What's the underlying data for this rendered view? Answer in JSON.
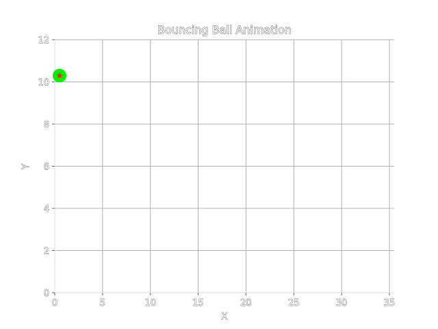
{
  "chart_data": {
    "type": "scatter",
    "title": "Bouncing Ball Animation",
    "xlabel": "X",
    "ylabel": "Y",
    "xlim": [
      0,
      35.5
    ],
    "ylim": [
      0,
      12
    ],
    "xticks": [
      "0",
      "5",
      "10",
      "15",
      "20",
      "25",
      "30",
      "35"
    ],
    "yticks": [
      "0",
      "2",
      "4",
      "6",
      "8",
      "10",
      "12"
    ],
    "grid": true,
    "series": [
      {
        "marker": "circle",
        "color": "#00ee00",
        "points": [
          {
            "x": 0.5,
            "y": 10.3
          }
        ]
      },
      {
        "marker": "star",
        "color": "#ff2222",
        "points": [
          {
            "x": 0.5,
            "y": 10.3
          }
        ]
      }
    ]
  }
}
